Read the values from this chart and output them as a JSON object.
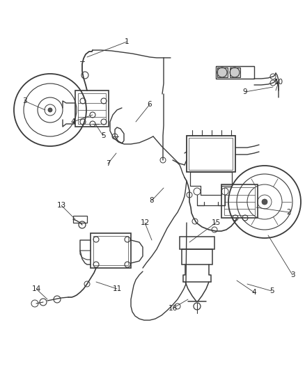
{
  "bg_color": "#ffffff",
  "line_color": "#3a3a3a",
  "label_color": "#222222",
  "figsize": [
    4.38,
    5.33
  ],
  "dpi": 100,
  "lw": 1.0
}
